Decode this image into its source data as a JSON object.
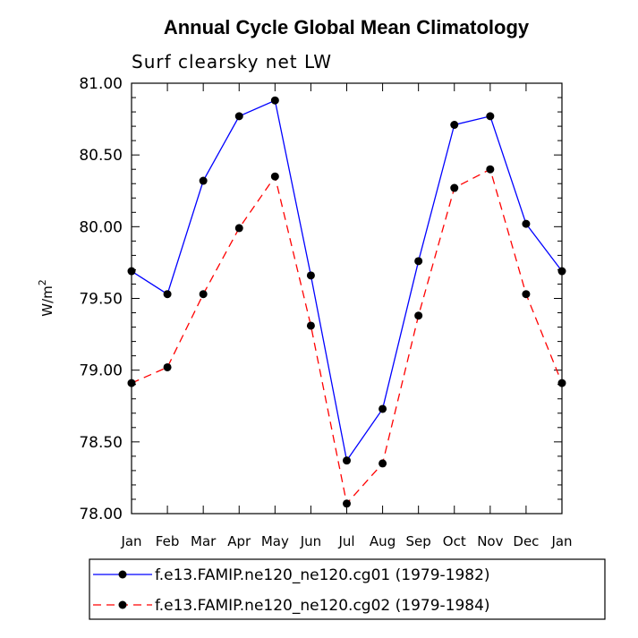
{
  "chart_data": {
    "type": "line",
    "title": "Annual Cycle Global Mean Climatology",
    "subtitle": "Surf clearsky net LW",
    "ylabel": "W/m",
    "ylabel_superscript": "2",
    "xlabel": "",
    "categories": [
      "Jan",
      "Feb",
      "Mar",
      "Apr",
      "May",
      "Jun",
      "Jul",
      "Aug",
      "Sep",
      "Oct",
      "Nov",
      "Dec",
      "Jan"
    ],
    "ylim": [
      78.0,
      81.0
    ],
    "yticks": [
      "78.00",
      "78.50",
      "79.00",
      "79.50",
      "80.00",
      "80.50",
      "81.00"
    ],
    "series": [
      {
        "name": "f.e13.FAMIP.ne120_ne120.cg01 (1979-1982)",
        "color": "#0000ff",
        "dash": "solid",
        "values": [
          79.69,
          79.53,
          80.32,
          80.77,
          80.88,
          79.66,
          78.37,
          78.73,
          79.76,
          80.71,
          80.77,
          80.02,
          79.69
        ]
      },
      {
        "name": "f.e13.FAMIP.ne120_ne120.cg02 (1979-1984)",
        "color": "#ff0000",
        "dash": "dashed",
        "values": [
          78.91,
          79.02,
          79.53,
          79.99,
          80.35,
          79.31,
          78.07,
          78.35,
          79.38,
          80.27,
          80.4,
          79.53,
          78.91
        ]
      }
    ],
    "legend_position": "bottom"
  }
}
